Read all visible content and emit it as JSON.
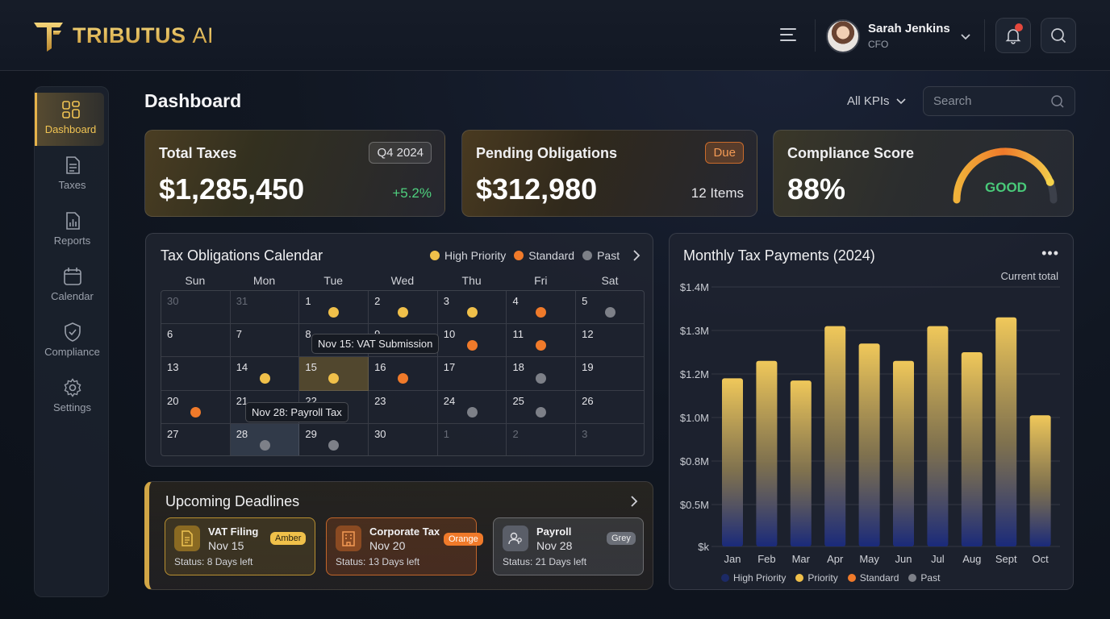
{
  "header": {
    "brand_main": "TRIBUTUS",
    "brand_suffix": "AI",
    "user_name": "Sarah Jenkins",
    "user_role": "CFO",
    "has_notification": true
  },
  "sidebar": {
    "items": [
      {
        "label": "Dashboard",
        "icon": "grid-icon",
        "active": true
      },
      {
        "label": "Taxes",
        "icon": "document-icon",
        "active": false
      },
      {
        "label": "Reports",
        "icon": "report-chart-icon",
        "active": false
      },
      {
        "label": "Calendar",
        "icon": "calendar-icon",
        "active": false
      },
      {
        "label": "Compliance",
        "icon": "shield-check-icon",
        "active": false
      },
      {
        "label": "Settings",
        "icon": "gear-icon",
        "active": false
      }
    ]
  },
  "page": {
    "title": "Dashboard",
    "kpi_filter": "All KPIs",
    "search_placeholder": "Search"
  },
  "kpis": {
    "total_taxes": {
      "title": "Total Taxes",
      "period": "Q4 2024",
      "value": "$1,285,450",
      "change": "+5.2%"
    },
    "pending": {
      "title": "Pending Obligations",
      "badge": "Due",
      "value": "$312,980",
      "items": "12 Items"
    },
    "compliance": {
      "title": "Compliance Score",
      "value": "88%",
      "rating": "GOOD",
      "score": 88
    }
  },
  "calendar": {
    "title": "Tax Obligations Calendar",
    "legend": {
      "high": "High Priority",
      "standard": "Standard",
      "past": "Past"
    },
    "weekdays": [
      "Sun",
      "Mon",
      "Tue",
      "Wed",
      "Thu",
      "Fri",
      "Sat"
    ],
    "cells": [
      {
        "d": "30",
        "muted": true,
        "dot": ""
      },
      {
        "d": "31",
        "muted": true,
        "dot": ""
      },
      {
        "d": "1",
        "muted": false,
        "dot": "high"
      },
      {
        "d": "2",
        "muted": false,
        "dot": "high"
      },
      {
        "d": "3",
        "muted": false,
        "dot": "high"
      },
      {
        "d": "4",
        "muted": false,
        "dot": "std"
      },
      {
        "d": "5",
        "muted": false,
        "dot": "past"
      },
      {
        "d": "6",
        "muted": false,
        "dot": ""
      },
      {
        "d": "7",
        "muted": false,
        "dot": ""
      },
      {
        "d": "8",
        "muted": false,
        "dot": ""
      },
      {
        "d": "9",
        "muted": false,
        "dot": ""
      },
      {
        "d": "10",
        "muted": false,
        "dot": "std"
      },
      {
        "d": "11",
        "muted": false,
        "dot": "std"
      },
      {
        "d": "12",
        "muted": false,
        "dot": ""
      },
      {
        "d": "13",
        "muted": false,
        "dot": ""
      },
      {
        "d": "14",
        "muted": false,
        "dot": "high"
      },
      {
        "d": "15",
        "muted": false,
        "dot": "high",
        "hl": "gold"
      },
      {
        "d": "16",
        "muted": false,
        "dot": "std"
      },
      {
        "d": "17",
        "muted": false,
        "dot": ""
      },
      {
        "d": "18",
        "muted": false,
        "dot": "past"
      },
      {
        "d": "19",
        "muted": false,
        "dot": ""
      },
      {
        "d": "20",
        "muted": false,
        "dot": "std"
      },
      {
        "d": "21",
        "muted": false,
        "dot": ""
      },
      {
        "d": "22",
        "muted": false,
        "dot": ""
      },
      {
        "d": "23",
        "muted": false,
        "dot": ""
      },
      {
        "d": "24",
        "muted": false,
        "dot": "past"
      },
      {
        "d": "25",
        "muted": false,
        "dot": "past"
      },
      {
        "d": "26",
        "muted": false,
        "dot": ""
      },
      {
        "d": "27",
        "muted": false,
        "dot": ""
      },
      {
        "d": "28",
        "muted": false,
        "dot": "past",
        "hl": "blue"
      },
      {
        "d": "29",
        "muted": false,
        "dot": "past"
      },
      {
        "d": "30",
        "muted": false,
        "dot": ""
      },
      {
        "d": "1",
        "muted": true,
        "dot": ""
      },
      {
        "d": "2",
        "muted": true,
        "dot": ""
      },
      {
        "d": "3",
        "muted": true,
        "dot": ""
      }
    ],
    "tooltip_vat": "Nov 15: VAT Submission",
    "tooltip_payroll": "Nov 28: Payroll Tax"
  },
  "deadlines": {
    "title": "Upcoming Deadlines",
    "items": [
      {
        "name": "VAT Filing",
        "date": "Nov 15",
        "badge": "Amber",
        "status": "Status: 8 Days left"
      },
      {
        "name": "Corporate Tax",
        "date": "Nov 20",
        "badge": "Orange",
        "status": "Status: 13 Days left"
      },
      {
        "name": "Payroll",
        "date": "Nov 28",
        "badge": "Grey",
        "status": "Status: 21 Days left"
      }
    ]
  },
  "chart": {
    "more": "•••"
  },
  "chart_data": {
    "type": "bar",
    "title": "Monthly Tax Payments (2024)",
    "subtitle": "Current total",
    "categories": [
      "Jan",
      "Feb",
      "Mar",
      "Apr",
      "May",
      "Jun",
      "Jul",
      "Aug",
      "Sept",
      "Oct"
    ],
    "values": [
      1.18,
      1.23,
      1.17,
      1.31,
      1.27,
      1.23,
      1.31,
      1.25,
      1.33,
      1.01
    ],
    "y_ticks": [
      "$1.4M",
      "$1.3M",
      "$1.2M",
      "$1.0M",
      "$0.8M",
      "$0.5M",
      "$k"
    ],
    "legend": [
      "High Priority",
      "Priority",
      "Standard",
      "Past"
    ],
    "grid": true,
    "colors": {
      "bar_top": "#f0c85a",
      "bar_bottom": "#1a2a7a"
    }
  },
  "colors": {
    "gold": "#e6b34a",
    "orange": "#f07a2a",
    "green": "#4fd07e",
    "grey": "#7d8088"
  }
}
